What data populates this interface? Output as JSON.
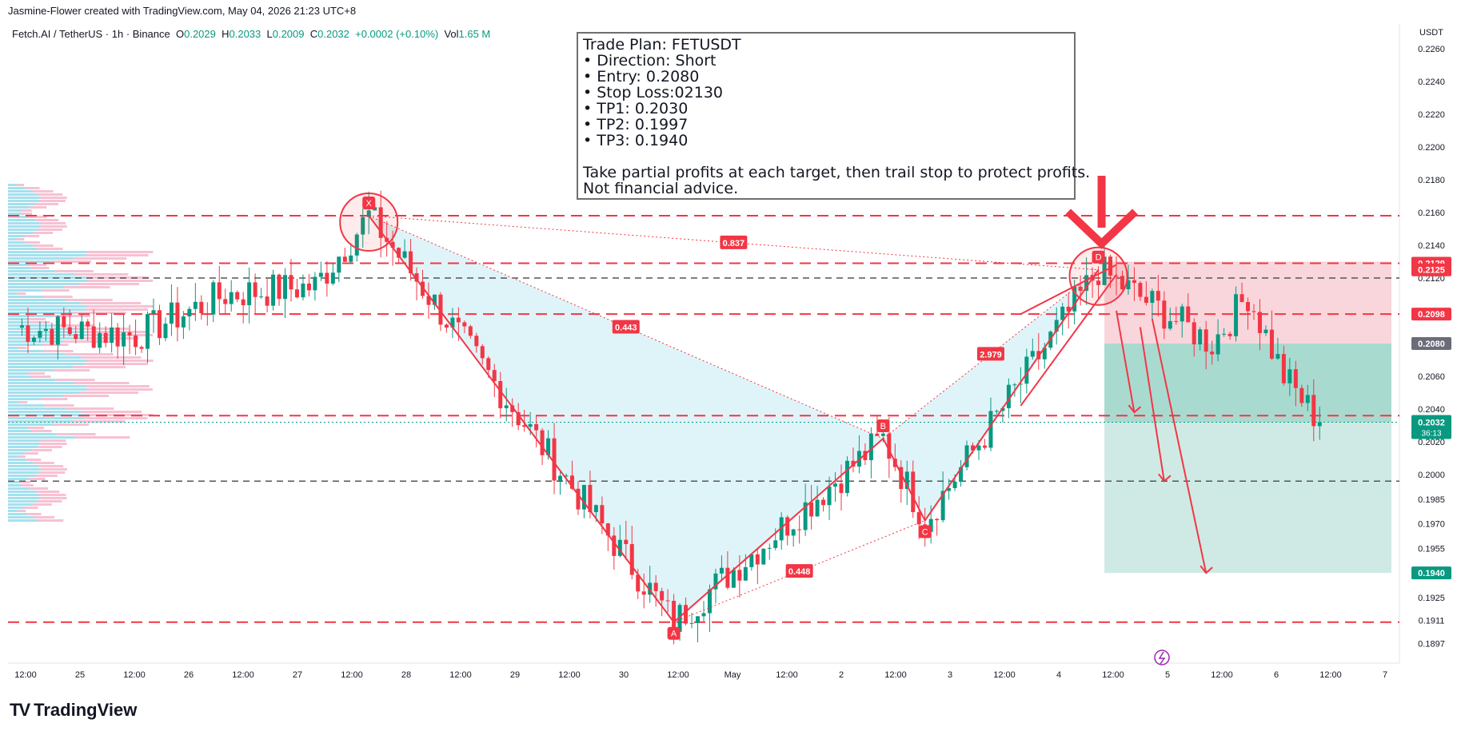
{
  "header": {
    "credit": "Jasmine-Flower created with TradingView.com, May 04, 2026 21:23 UTC+8",
    "symbol": "Fetch.AI / TetherUS · 1h · Binance",
    "o_label": "O",
    "o_value": "0.2029",
    "h_label": "H",
    "h_value": "0.2033",
    "l_label": "L",
    "l_value": "0.2009",
    "c_label": "C",
    "c_value": "0.2032",
    "change": "+0.0002 (+0.10%)",
    "vol_label": "Vol",
    "vol_value": "1.65 M"
  },
  "trade_plan": {
    "lines": [
      "Trade Plan: FETUSDT",
      "• Direction: Short",
      "• Entry: 0.2080",
      "• Stop Loss:02130",
      "• TP1: 0.2030",
      "• TP2: 0.1997",
      "• TP3: 0.1940",
      "",
      "Take partial profits at each target, then trail stop to protect profits.",
      "Not financial advice."
    ]
  },
  "colors": {
    "bull": "#089981",
    "bear": "#f23645",
    "pattern_fill": "#dff4f9",
    "stop_zone": "#f7cfd5",
    "target_zone": "#cfeae4",
    "target_zone_dark": "#9fd6ca",
    "accent": "#f23645"
  },
  "chart_data": {
    "type": "candlestick",
    "currency": "USDT",
    "ylim": [
      0.1885,
      0.2275
    ],
    "y_ticks": [
      "0.2260",
      "0.2240",
      "0.2220",
      "0.2200",
      "0.2180",
      "0.2160",
      "0.2140",
      "0.2120",
      "0.2100",
      "0.2060",
      "0.2040",
      "0.2020",
      "0.2000",
      "0.1985",
      "0.1970",
      "0.1955",
      "0.1925",
      "0.1911",
      "0.1897"
    ],
    "x_ticks": [
      "12:00",
      "25",
      "12:00",
      "26",
      "12:00",
      "27",
      "12:00",
      "28",
      "12:00",
      "29",
      "12:00",
      "30",
      "12:00",
      "May",
      "12:00",
      "2",
      "12:00",
      "3",
      "12:00",
      "4",
      "12:00",
      "5",
      "12:00",
      "6",
      "12:00",
      "7"
    ],
    "last_price": "0.2032",
    "countdown": "36:13",
    "price_labels": [
      {
        "value": "0.2129",
        "kind": "red"
      },
      {
        "value": "0.2125",
        "kind": "red"
      },
      {
        "value": "0.2098",
        "kind": "red"
      },
      {
        "value": "0.2080",
        "kind": "gray"
      },
      {
        "value": "0.1940",
        "kind": "green"
      }
    ],
    "pattern_points": [
      {
        "label": "X",
        "time_idx": 59,
        "price": 0.2158
      },
      {
        "label": "A",
        "time_idx": 110,
        "price": 0.191
      },
      {
        "label": "B",
        "time_idx": 145,
        "price": 0.2022
      },
      {
        "label": "C",
        "time_idx": 152,
        "price": 0.1972
      },
      {
        "label": "D",
        "time_idx": 181,
        "price": 0.2125
      }
    ],
    "ratios": [
      "0.837",
      "0.443",
      "2.979",
      "0.448"
    ],
    "levels": [
      {
        "price": 0.2158,
        "style": "dash-red"
      },
      {
        "price": 0.2129,
        "style": "dash-red"
      },
      {
        "price": 0.212,
        "style": "dash-gray"
      },
      {
        "price": 0.2098,
        "style": "dash-red"
      },
      {
        "price": 0.2036,
        "style": "dash-red"
      },
      {
        "price": 0.1996,
        "style": "dash-gray"
      },
      {
        "price": 0.191,
        "style": "dash-red"
      }
    ],
    "position": {
      "entry": 0.208,
      "stop": 0.213,
      "target": 0.194
    }
  },
  "brand": {
    "name": "TradingView",
    "logo": "TV"
  }
}
